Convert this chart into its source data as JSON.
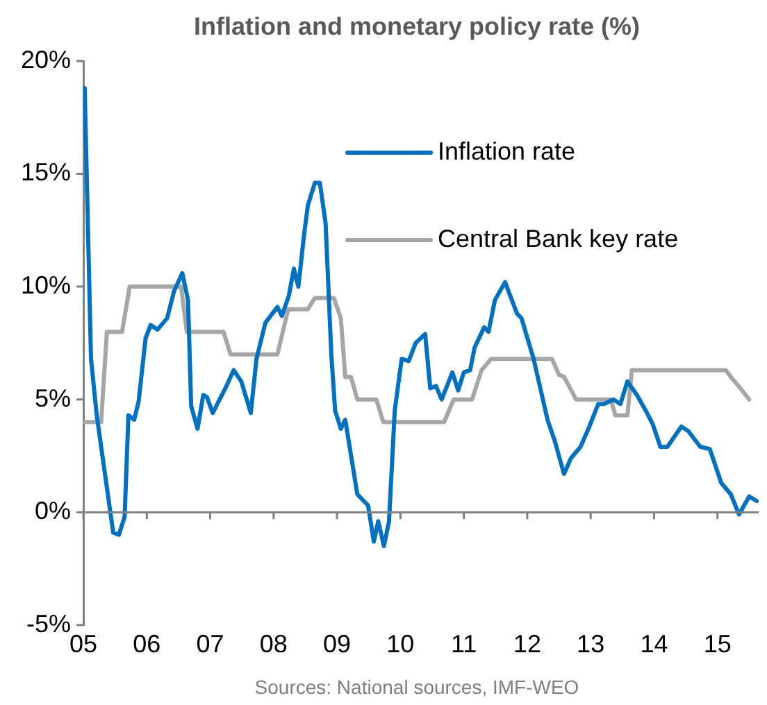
{
  "chart_data": {
    "type": "line",
    "title": "Inflation and monetary policy rate (%)",
    "xlim": [
      2005,
      2015.65
    ],
    "xticks": [
      {
        "value": 2005,
        "label": "05"
      },
      {
        "value": 2006,
        "label": "06"
      },
      {
        "value": 2007,
        "label": "07"
      },
      {
        "value": 2008,
        "label": "08"
      },
      {
        "value": 2009,
        "label": "09"
      },
      {
        "value": 2010,
        "label": "10"
      },
      {
        "value": 2011,
        "label": "11"
      },
      {
        "value": 2012,
        "label": "12"
      },
      {
        "value": 2013,
        "label": "13"
      },
      {
        "value": 2014,
        "label": "14"
      },
      {
        "value": 2015,
        "label": "15"
      }
    ],
    "ylim": [
      -5,
      20
    ],
    "yticks": [
      {
        "value": -5,
        "label": "-5%"
      },
      {
        "value": 0,
        "label": "0%"
      },
      {
        "value": 5,
        "label": "5%"
      },
      {
        "value": 10,
        "label": "10%"
      },
      {
        "value": 15,
        "label": "15%"
      },
      {
        "value": 20,
        "label": "20%"
      }
    ],
    "legend": "top right",
    "marker": "none",
    "line_style": "solid",
    "annotations": [
      "Sources: National sources, IMF-WEO"
    ],
    "series": [
      {
        "name": "Inflation rate",
        "color": "#0070c0",
        "x": [
          2005.02,
          2005.12,
          2005.21,
          2005.39,
          2005.47,
          2005.56,
          2005.65,
          2005.71,
          2005.8,
          2005.87,
          2005.98,
          2006.06,
          2006.17,
          2006.32,
          2006.43,
          2006.56,
          2006.65,
          2006.7,
          2006.8,
          2006.89,
          2006.95,
          2007.04,
          2007.24,
          2007.37,
          2007.49,
          2007.64,
          2007.73,
          2007.87,
          2008.06,
          2008.13,
          2008.24,
          2008.32,
          2008.39,
          2008.48,
          2008.54,
          2008.65,
          2008.73,
          2008.82,
          2008.91,
          2008.97,
          2009.06,
          2009.13,
          2009.32,
          2009.49,
          2009.58,
          2009.65,
          2009.74,
          2009.82,
          2009.91,
          2010.02,
          2010.13,
          2010.24,
          2010.39,
          2010.47,
          2010.56,
          2010.65,
          2010.82,
          2010.91,
          2011.0,
          2011.1,
          2011.17,
          2011.32,
          2011.39,
          2011.49,
          2011.65,
          2011.84,
          2011.91,
          2012.1,
          2012.32,
          2012.43,
          2012.58,
          2012.69,
          2012.84,
          2012.98,
          2013.12,
          2013.21,
          2013.36,
          2013.47,
          2013.58,
          2013.73,
          2013.87,
          2013.98,
          2014.1,
          2014.21,
          2014.43,
          2014.54,
          2014.73,
          2014.88,
          2015.06,
          2015.21,
          2015.34,
          2015.5,
          2015.62
        ],
        "values": [
          18.8,
          6.8,
          4.3,
          0.7,
          -0.9,
          -1.0,
          -0.2,
          4.3,
          4.1,
          4.9,
          7.7,
          8.3,
          8.1,
          8.6,
          9.8,
          10.6,
          9.4,
          4.7,
          3.7,
          5.2,
          5.1,
          4.4,
          5.5,
          6.3,
          5.8,
          4.4,
          6.8,
          8.4,
          9.1,
          8.7,
          9.6,
          10.8,
          10.0,
          12.3,
          13.6,
          14.6,
          14.6,
          12.8,
          7.0,
          4.5,
          3.7,
          4.1,
          0.8,
          0.3,
          -1.3,
          -0.4,
          -1.5,
          -0.4,
          4.5,
          6.8,
          6.7,
          7.5,
          7.9,
          5.5,
          5.6,
          5.0,
          6.2,
          5.4,
          6.2,
          6.3,
          7.3,
          8.2,
          8.0,
          9.4,
          10.2,
          8.8,
          8.6,
          6.8,
          4.1,
          3.2,
          1.7,
          2.4,
          2.9,
          3.8,
          4.8,
          4.8,
          5.0,
          4.8,
          5.8,
          5.2,
          4.5,
          3.9,
          2.9,
          2.9,
          3.8,
          3.6,
          2.9,
          2.8,
          1.3,
          0.8,
          -0.1,
          0.7,
          0.5
        ]
      },
      {
        "name": "Central Bank key rate",
        "color": "#a6a6a6",
        "x": [
          2005.02,
          2005.28,
          2005.37,
          2005.61,
          2005.73,
          2006.54,
          2006.63,
          2007.21,
          2007.32,
          2008.06,
          2008.23,
          2008.54,
          2008.65,
          2008.95,
          2009.06,
          2009.13,
          2009.22,
          2009.32,
          2009.62,
          2009.73,
          2010.69,
          2010.84,
          2011.13,
          2011.28,
          2011.43,
          2012.39,
          2012.5,
          2012.58,
          2012.77,
          2013.32,
          2013.39,
          2013.58,
          2013.65,
          2015.13,
          2015.24,
          2015.36,
          2015.5
        ],
        "values": [
          4.0,
          4.0,
          8.0,
          8.0,
          10.0,
          10.0,
          8.0,
          8.0,
          7.0,
          7.0,
          9.0,
          9.0,
          9.5,
          9.5,
          8.6,
          6.0,
          6.0,
          5.0,
          5.0,
          4.0,
          4.0,
          5.0,
          5.0,
          6.3,
          6.8,
          6.8,
          6.1,
          6.0,
          5.0,
          5.0,
          4.3,
          4.3,
          6.3,
          6.3,
          5.9,
          5.5,
          5.0
        ]
      }
    ]
  }
}
